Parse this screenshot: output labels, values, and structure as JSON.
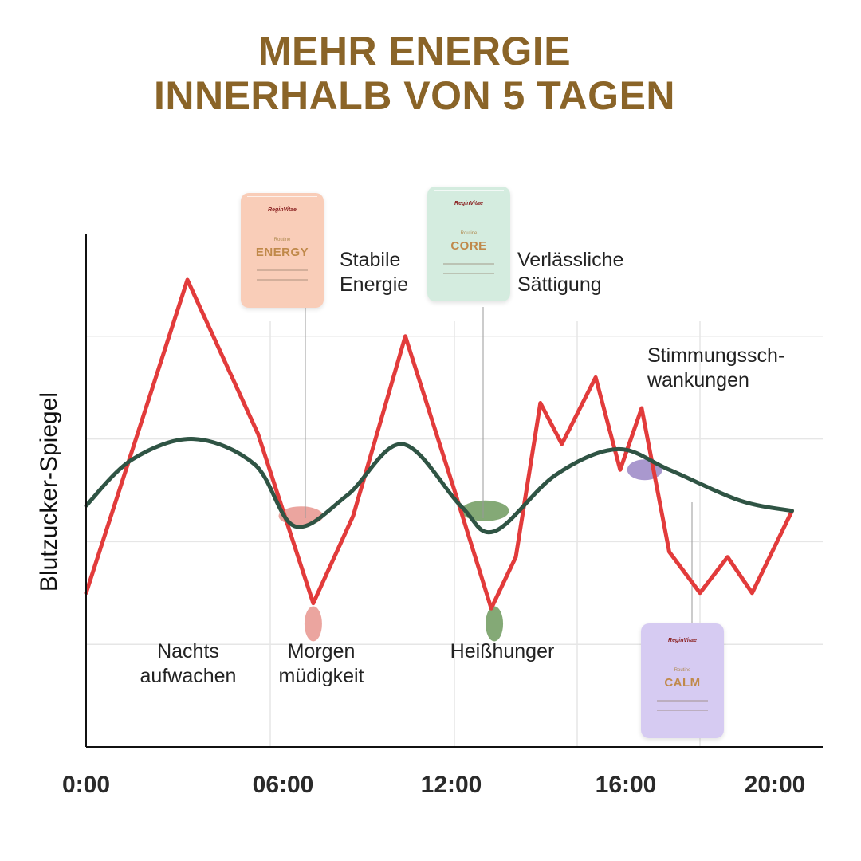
{
  "title": {
    "line1": "MEHR ENERGIE",
    "line2": "INNERHALB VON 5 TAGEN"
  },
  "chart_data": {
    "type": "line",
    "ylabel": "Blutzucker-Spiegel",
    "xlim": [
      0,
      24
    ],
    "x_ticks": [
      {
        "value": 0,
        "label": "0:00"
      },
      {
        "value": 6,
        "label": "06:00"
      },
      {
        "value": 12,
        "label": "12:00"
      },
      {
        "value": 16,
        "label": "16:00"
      },
      {
        "value": 20,
        "label": "20:00"
      }
    ],
    "ylim": [
      0,
      10
    ],
    "grid": true,
    "series": [
      {
        "color": "#e23b3b",
        "points": [
          [
            0,
            3.0
          ],
          [
            3.3,
            9.1
          ],
          [
            5.6,
            6.1
          ],
          [
            7.4,
            2.8
          ],
          [
            8.7,
            4.5
          ],
          [
            10.4,
            8.0
          ],
          [
            12.0,
            5.0
          ],
          [
            13.2,
            2.7
          ],
          [
            14.0,
            3.7
          ],
          [
            14.8,
            6.7
          ],
          [
            15.5,
            5.9
          ],
          [
            16.6,
            7.2
          ],
          [
            17.4,
            5.4
          ],
          [
            18.1,
            6.6
          ],
          [
            19.0,
            3.8
          ],
          [
            20.0,
            3.0
          ],
          [
            20.9,
            3.7
          ],
          [
            21.7,
            3.0
          ],
          [
            23.0,
            4.6
          ]
        ]
      },
      {
        "color": "#2f5444",
        "points": [
          [
            0,
            4.7
          ],
          [
            1.5,
            5.6
          ],
          [
            3.5,
            6.0
          ],
          [
            5.5,
            5.5
          ],
          [
            6.8,
            4.3
          ],
          [
            8.5,
            4.9
          ],
          [
            10.3,
            5.9
          ],
          [
            12.2,
            4.7
          ],
          [
            13.3,
            4.2
          ],
          [
            15.3,
            5.3
          ],
          [
            17.3,
            5.8
          ],
          [
            19.0,
            5.4
          ],
          [
            21.3,
            4.8
          ],
          [
            23.0,
            4.6
          ]
        ]
      }
    ],
    "annotations": [
      {
        "line1": "Nachts",
        "line2": "aufwachen"
      },
      {
        "line1": "Morgen",
        "line2": "müdigkeit"
      },
      {
        "line1": "Heißhunger"
      },
      {
        "line1": "Stabile",
        "line2": "Energie"
      },
      {
        "line1": "Verlässliche",
        "line2": "Sättigung"
      },
      {
        "line1": "Stimmungssch-",
        "line2": "wankungen"
      }
    ],
    "products": [
      {
        "routine": "Routine",
        "name": "ENERGY",
        "color": "#f9cdb8",
        "marker_color": "#e8958e"
      },
      {
        "routine": "Routine",
        "name": "CORE",
        "color": "#d4ecdf",
        "marker_color": "#6f9a5e"
      },
      {
        "routine": "Routine",
        "name": "CALM",
        "color": "#d6cbf2",
        "marker_color": "#9a86c6"
      }
    ],
    "brand": "ReginVitae"
  }
}
